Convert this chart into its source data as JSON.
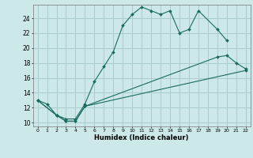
{
  "title": "",
  "xlabel": "Humidex (Indice chaleur)",
  "bg_color": "#cce8e8",
  "grid_color": "#aacccc",
  "line_color": "#1a6b60",
  "xlim": [
    -0.5,
    22.5
  ],
  "ylim": [
    9.5,
    25.8
  ],
  "xticks": [
    0,
    1,
    2,
    3,
    4,
    5,
    6,
    7,
    8,
    9,
    10,
    11,
    12,
    13,
    14,
    15,
    16,
    17,
    18,
    19,
    20,
    21,
    22
  ],
  "yticks": [
    10,
    12,
    14,
    16,
    18,
    20,
    22,
    24
  ],
  "line1_x": [
    0,
    1,
    2,
    3,
    4,
    5,
    6,
    7,
    8,
    9,
    10,
    11,
    12,
    13,
    14,
    15,
    16,
    17,
    19,
    20
  ],
  "line1_y": [
    13,
    12.5,
    11,
    10.5,
    10.5,
    12.5,
    15.5,
    17.5,
    19.5,
    23,
    24.5,
    25.5,
    25,
    24.5,
    25,
    22,
    22.5,
    25,
    22.5,
    21
  ],
  "line2_x": [
    0,
    2,
    3,
    4,
    5,
    22
  ],
  "line2_y": [
    13,
    11,
    10.2,
    10.2,
    12.2,
    17
  ],
  "line3_x": [
    0,
    2,
    3,
    4,
    5,
    19,
    20,
    21,
    22
  ],
  "line3_y": [
    13,
    11,
    10.2,
    10.2,
    12.2,
    18.8,
    19,
    18,
    17.2
  ]
}
